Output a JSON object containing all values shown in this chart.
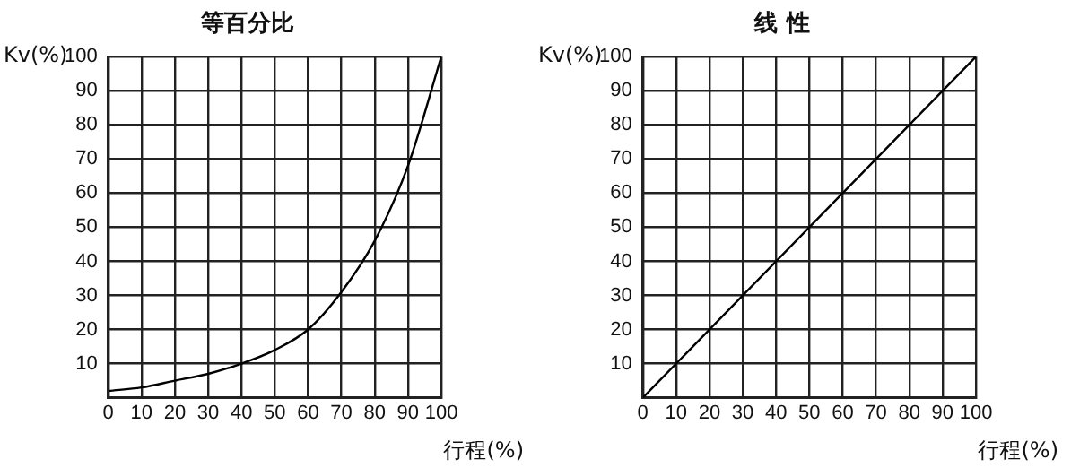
{
  "chart_data": [
    {
      "type": "line",
      "title": "等百分比",
      "xlabel": "行程(%)",
      "ylabel": "Kv(%)",
      "x": [
        0,
        10,
        20,
        30,
        40,
        50,
        60,
        70,
        80,
        90,
        100
      ],
      "series": [
        {
          "color": "#000000",
          "values": [
            2,
            3,
            5,
            7,
            10,
            14,
            20,
            31,
            46,
            68,
            100
          ]
        }
      ],
      "xlim": [
        0,
        100
      ],
      "ylim": [
        0,
        100
      ],
      "xticks": [
        0,
        10,
        20,
        30,
        40,
        50,
        60,
        70,
        80,
        90,
        100
      ],
      "yticks": [
        {
          "value": 0,
          "label": null
        },
        10,
        20,
        30,
        40,
        50,
        60,
        70,
        80,
        90,
        100
      ],
      "grid": true,
      "marker": "none"
    },
    {
      "type": "line",
      "title": "线 性",
      "xlabel": "行程(%)",
      "ylabel": "Kv(%)",
      "x": [
        0,
        100
      ],
      "series": [
        {
          "color": "#000000",
          "values": [
            0,
            100
          ]
        }
      ],
      "xlim": [
        0,
        100
      ],
      "ylim": [
        0,
        100
      ],
      "xticks": [
        0,
        10,
        20,
        30,
        40,
        50,
        60,
        70,
        80,
        90,
        100
      ],
      "yticks": [
        {
          "value": 0,
          "label": null
        },
        10,
        20,
        30,
        40,
        50,
        60,
        70,
        80,
        90,
        100
      ],
      "grid": true,
      "marker": "none"
    }
  ]
}
